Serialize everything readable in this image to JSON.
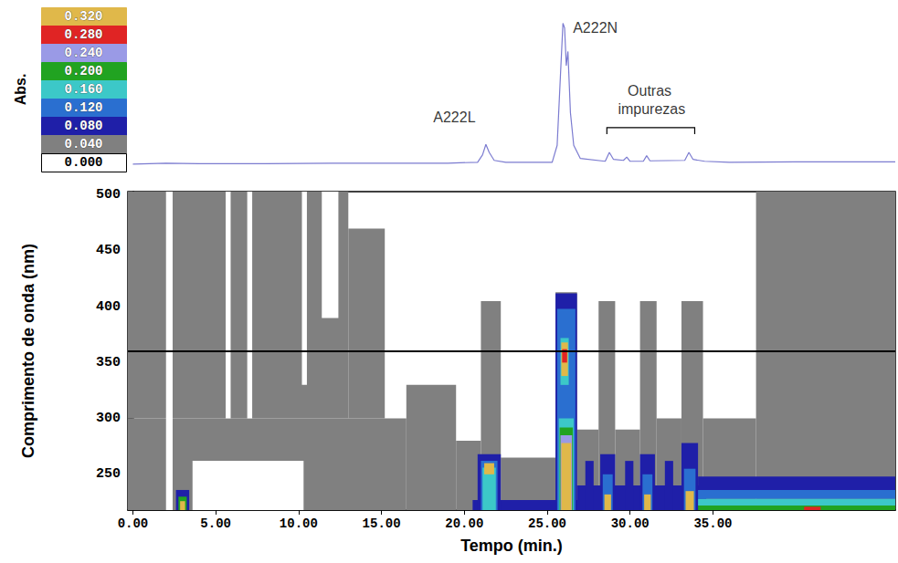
{
  "chart_data": [
    {
      "type": "line",
      "color": "#7b7bd0",
      "x": [
        0,
        2,
        4,
        8,
        12,
        16,
        19,
        20.8,
        21.1,
        21.3,
        21.5,
        21.8,
        22.5,
        25.3,
        25.6,
        25.8,
        25.95,
        26.05,
        26.15,
        26.25,
        26.4,
        26.6,
        27,
        28.5,
        28.75,
        29,
        29.6,
        29.8,
        30,
        30.8,
        31,
        31.2,
        33.3,
        33.55,
        33.8,
        34.5,
        36,
        40,
        46
      ],
      "values": [
        0.01,
        0.012,
        0.011,
        0.011,
        0.012,
        0.012,
        0.012,
        0.014,
        0.03,
        0.052,
        0.035,
        0.018,
        0.014,
        0.014,
        0.05,
        0.2,
        0.31,
        0.3,
        0.22,
        0.25,
        0.12,
        0.05,
        0.022,
        0.016,
        0.035,
        0.02,
        0.018,
        0.025,
        0.016,
        0.016,
        0.028,
        0.017,
        0.018,
        0.035,
        0.02,
        0.016,
        0.014,
        0.015,
        0.015
      ],
      "xlim": [
        -0.3,
        46
      ],
      "ylim": [
        0,
        0.35
      ],
      "tick_labels": false,
      "annotations": [
        {
          "text": "A222L",
          "x": 19.4,
          "y": 0.11
        },
        {
          "text": "A222N",
          "x": 27.9,
          "y": 0.3
        },
        {
          "text": "Outras impurezas",
          "x": 31.3,
          "y": 0.146,
          "span": [
            28.6,
            33.9
          ]
        }
      ]
    },
    {
      "type": "heatmap",
      "xlabel": "Tempo (min.)",
      "ylabel": "Comprimento de onda (nm)",
      "xlim": [
        -0.3,
        46
      ],
      "ylim": [
        218,
        503
      ],
      "xticks": [
        {
          "value": 0,
          "label": "0.00"
        },
        {
          "value": 5,
          "label": "5.00"
        },
        {
          "value": 10,
          "label": "10.00"
        },
        {
          "value": 15,
          "label": "15.00"
        },
        {
          "value": 20,
          "label": "20.00"
        },
        {
          "value": 25,
          "label": "25.00"
        },
        {
          "value": 30,
          "label": "30.00"
        },
        {
          "value": 35,
          "label": "35.00"
        }
      ],
      "yticks": [
        250,
        300,
        350,
        400,
        450,
        500
      ],
      "wavelength_line": 360,
      "colorbar": {
        "title": "Abs.",
        "levels": [
          {
            "value": 0.32,
            "label": "0.320",
            "color": "#e0b84a"
          },
          {
            "value": 0.28,
            "label": "0.280",
            "color": "#e02424"
          },
          {
            "value": 0.24,
            "label": "0.240",
            "color": "#9a9ae6"
          },
          {
            "value": 0.2,
            "label": "0.200",
            "color": "#21a321"
          },
          {
            "value": 0.16,
            "label": "0.160",
            "color": "#3cc8c8"
          },
          {
            "value": 0.12,
            "label": "0.120",
            "color": "#2a6fd0"
          },
          {
            "value": 0.08,
            "label": "0.080",
            "color": "#1f1fa8"
          },
          {
            "value": 0.04,
            "label": "0.040",
            "color": "#808080"
          },
          {
            "value": 0,
            "label": "0.000",
            "color": "#ffffff"
          }
        ]
      },
      "cells": [
        [
          -0.3,
          13.0,
          300,
          503,
          0.04
        ],
        [
          13.0,
          15.2,
          300,
          470,
          0.04
        ],
        [
          -0.3,
          16.5,
          218,
          300,
          0.04
        ],
        [
          16.5,
          19.5,
          218,
          330,
          0.04
        ],
        [
          19.5,
          21.0,
          218,
          280,
          0.04
        ],
        [
          21.0,
          22.2,
          218,
          405,
          0.04
        ],
        [
          22.2,
          25.5,
          218,
          265,
          0.04
        ],
        [
          25.5,
          26.8,
          218,
          413,
          0.04
        ],
        [
          26.8,
          28.1,
          218,
          290,
          0.04
        ],
        [
          28.1,
          29.1,
          218,
          405,
          0.04
        ],
        [
          29.1,
          30.6,
          218,
          290,
          0.04
        ],
        [
          30.6,
          31.6,
          218,
          405,
          0.04
        ],
        [
          31.6,
          33.1,
          218,
          300,
          0.04
        ],
        [
          33.1,
          34.4,
          218,
          405,
          0.04
        ],
        [
          34.4,
          37.6,
          218,
          300,
          0.04
        ],
        [
          37.6,
          46,
          218,
          503,
          0.04
        ],
        [
          2.0,
          2.4,
          218,
          503,
          0
        ],
        [
          3.6,
          10.3,
          218,
          262,
          0
        ],
        [
          5.6,
          5.9,
          300,
          503,
          0
        ],
        [
          6.9,
          7.2,
          300,
          503,
          0
        ],
        [
          10.2,
          10.5,
          330,
          503,
          0
        ],
        [
          11.4,
          12.4,
          390,
          503,
          0
        ],
        [
          2.6,
          3.4,
          218,
          236,
          0.08
        ],
        [
          2.75,
          3.25,
          218,
          230,
          0.2
        ],
        [
          2.85,
          3.15,
          218,
          226,
          0.32
        ],
        [
          20.5,
          34.5,
          218,
          227,
          0.08
        ],
        [
          20.8,
          22.2,
          218,
          268,
          0.08
        ],
        [
          21.0,
          22.0,
          218,
          262,
          0.12
        ],
        [
          21.1,
          21.9,
          218,
          256,
          0.16
        ],
        [
          21.2,
          21.8,
          250,
          260,
          0.32
        ],
        [
          25.5,
          26.8,
          218,
          412,
          0.08
        ],
        [
          25.6,
          26.7,
          218,
          398,
          0.12
        ],
        [
          25.7,
          26.6,
          218,
          300,
          0.16
        ],
        [
          25.75,
          26.55,
          218,
          292,
          0.2
        ],
        [
          25.8,
          26.5,
          218,
          285,
          0.24
        ],
        [
          25.85,
          26.45,
          218,
          278,
          0.32
        ],
        [
          25.8,
          26.3,
          330,
          372,
          0.16
        ],
        [
          25.85,
          26.25,
          338,
          368,
          0.32
        ],
        [
          25.9,
          26.2,
          350,
          362,
          0.28
        ],
        [
          26.8,
          34.6,
          218,
          240,
          0.08
        ],
        [
          27.3,
          27.8,
          218,
          262,
          0.08
        ],
        [
          29.7,
          30.2,
          218,
          262,
          0.08
        ],
        [
          32.1,
          32.6,
          218,
          262,
          0.08
        ],
        [
          28.2,
          29.1,
          218,
          268,
          0.08
        ],
        [
          28.35,
          28.95,
          218,
          250,
          0.12
        ],
        [
          28.45,
          28.85,
          218,
          232,
          0.32
        ],
        [
          30.6,
          31.5,
          218,
          268,
          0.08
        ],
        [
          30.75,
          31.35,
          218,
          250,
          0.12
        ],
        [
          30.85,
          31.25,
          218,
          232,
          0.32
        ],
        [
          33.1,
          34.1,
          218,
          278,
          0.08
        ],
        [
          33.25,
          33.95,
          218,
          255,
          0.12
        ],
        [
          33.35,
          33.85,
          218,
          235,
          0.32
        ],
        [
          34.1,
          46,
          236,
          248,
          0.08
        ],
        [
          34.1,
          46,
          228,
          236,
          0.12
        ],
        [
          34.1,
          46,
          222,
          228,
          0.16
        ],
        [
          34.1,
          46,
          218,
          222,
          0.2
        ],
        [
          40.5,
          41.5,
          218,
          221,
          0.28
        ]
      ]
    }
  ]
}
